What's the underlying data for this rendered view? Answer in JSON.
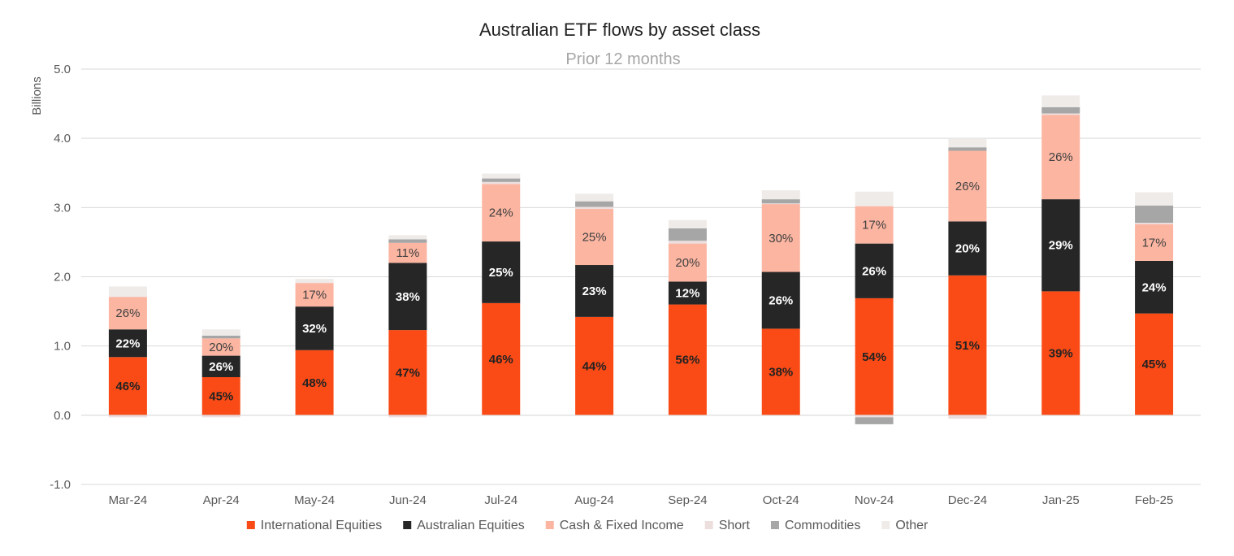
{
  "chart_data": {
    "type": "bar",
    "stacked": true,
    "title": "Australian ETF flows by asset class",
    "subtitle": "Prior 12 months",
    "ylabel": "Billions",
    "ylim": [
      -1.0,
      5.0
    ],
    "yticks": [
      "-1.0",
      "0.0",
      "1.0",
      "2.0",
      "3.0",
      "4.0",
      "5.0"
    ],
    "grid": true,
    "legend_position": "bottom",
    "categories": [
      "Mar-24",
      "Apr-24",
      "May-24",
      "Jun-24",
      "Jul-24",
      "Aug-24",
      "Sep-24",
      "Oct-24",
      "Nov-24",
      "Dec-24",
      "Jan-25",
      "Feb-25"
    ],
    "series": [
      {
        "name": "International Equities",
        "color": "#fa4b16",
        "label_color": "#222222",
        "values": [
          0.84,
          0.55,
          0.94,
          1.23,
          1.62,
          1.42,
          1.6,
          1.25,
          1.69,
          2.02,
          1.79,
          1.47
        ],
        "labels": [
          "46%",
          "45%",
          "48%",
          "47%",
          "46%",
          "44%",
          "56%",
          "38%",
          "54%",
          "51%",
          "39%",
          "45%"
        ]
      },
      {
        "name": "Australian Equities",
        "color": "#262626",
        "label_color": "#ffffff",
        "values": [
          0.4,
          0.31,
          0.63,
          0.97,
          0.89,
          0.75,
          0.33,
          0.82,
          0.79,
          0.78,
          1.33,
          0.76
        ],
        "labels": [
          "22%",
          "26%",
          "32%",
          "38%",
          "25%",
          "23%",
          "12%",
          "26%",
          "26%",
          "20%",
          "29%",
          "24%"
        ]
      },
      {
        "name": "Cash & Fixed Income",
        "color": "#fbb5a1",
        "label_color": "#404040",
        "values": [
          0.47,
          0.25,
          0.34,
          0.29,
          0.83,
          0.81,
          0.55,
          0.98,
          0.54,
          1.02,
          1.22,
          0.53
        ],
        "labels": [
          "26%",
          "20%",
          "17%",
          "11%",
          "24%",
          "25%",
          "20%",
          "30%",
          "17%",
          "26%",
          "26%",
          "17%"
        ]
      },
      {
        "name": "Short",
        "color": "#eddede",
        "values": [
          -0.03,
          -0.03,
          0.01,
          -0.03,
          0.03,
          0.03,
          0.04,
          0.01,
          -0.03,
          -0.05,
          0.02,
          0.02
        ]
      },
      {
        "name": "Commodities",
        "color": "#a6a6a6",
        "values": [
          0.0,
          0.04,
          0.0,
          0.05,
          0.05,
          0.08,
          0.18,
          0.06,
          -0.1,
          0.05,
          0.09,
          0.25
        ]
      },
      {
        "name": "Other",
        "color": "#efebe9",
        "values": [
          0.15,
          0.09,
          0.05,
          0.06,
          0.07,
          0.11,
          0.12,
          0.13,
          0.21,
          0.12,
          0.17,
          0.19
        ]
      }
    ]
  }
}
